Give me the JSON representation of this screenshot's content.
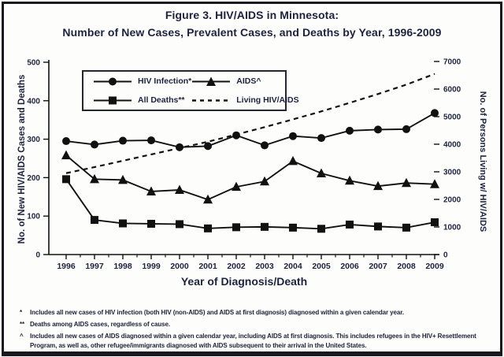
{
  "figure": {
    "title_line1": "Figure 3. HIV/AIDS in Minnesota:",
    "title_line2": "Number of New Cases, Prevalent Cases, and Deaths by Year, 1996-2009"
  },
  "chart_data": {
    "type": "line",
    "x": [
      1996,
      1997,
      1998,
      1999,
      2000,
      2001,
      2002,
      2003,
      2004,
      2005,
      2006,
      2007,
      2008,
      2009
    ],
    "xlabel": "Year of Diagnosis/Death",
    "grid": false,
    "legend_position": "top-left",
    "left_axis": {
      "label": "No. of New HIV/AIDS Cases and Deaths",
      "ticks": [
        0,
        100,
        200,
        300,
        400,
        500
      ],
      "range": [
        0,
        500
      ]
    },
    "right_axis": {
      "label": "No. of Persons Living w/ HIV/AIDS",
      "ticks": [
        0,
        1000,
        2000,
        3000,
        4000,
        5000,
        6000,
        7000
      ],
      "range": [
        0,
        7000
      ]
    },
    "series": [
      {
        "name": "HIV Infection*",
        "marker": "circle",
        "line": "solid",
        "axis": "left",
        "values": [
          295,
          286,
          296,
          297,
          279,
          282,
          310,
          284,
          308,
          303,
          322,
          325,
          326,
          368
        ]
      },
      {
        "name": "AIDS^",
        "marker": "triangle",
        "line": "solid",
        "axis": "left",
        "values": [
          258,
          196,
          194,
          164,
          168,
          143,
          176,
          190,
          243,
          211,
          192,
          178,
          186,
          183
        ]
      },
      {
        "name": "All Deaths**",
        "marker": "square",
        "line": "solid",
        "axis": "left",
        "values": [
          196,
          90,
          81,
          80,
          79,
          68,
          71,
          72,
          70,
          67,
          78,
          73,
          70,
          84
        ]
      },
      {
        "name": "Living HIV/AIDS",
        "marker": "none",
        "line": "dashed",
        "axis": "right",
        "values": [
          2950,
          3170,
          3400,
          3630,
          3860,
          4090,
          4350,
          4620,
          4900,
          5190,
          5500,
          5820,
          6160,
          6550
        ]
      }
    ]
  },
  "footnotes": [
    {
      "marker": "*",
      "text": "Includes all new cases of HIV infection (both HIV (non-AIDS) and AIDS at first diagnosis) diagnosed within a given calendar year."
    },
    {
      "marker": "**",
      "text": "Deaths among AIDS cases, regardless of cause."
    },
    {
      "marker": "^",
      "text": "Includes all new cases of AIDS diagnosed within a given calendar year, including AIDS at first diagnosis. This includes refugees in the HIV+ Resettlement Program, as well as, other refugee/immigrants diagnosed with AIDS subsequent to their arrival in the United States."
    }
  ],
  "colors": {
    "ink": "#111111",
    "text": "#1c2240",
    "background": "#fdfdfb",
    "border": "#17171d"
  }
}
